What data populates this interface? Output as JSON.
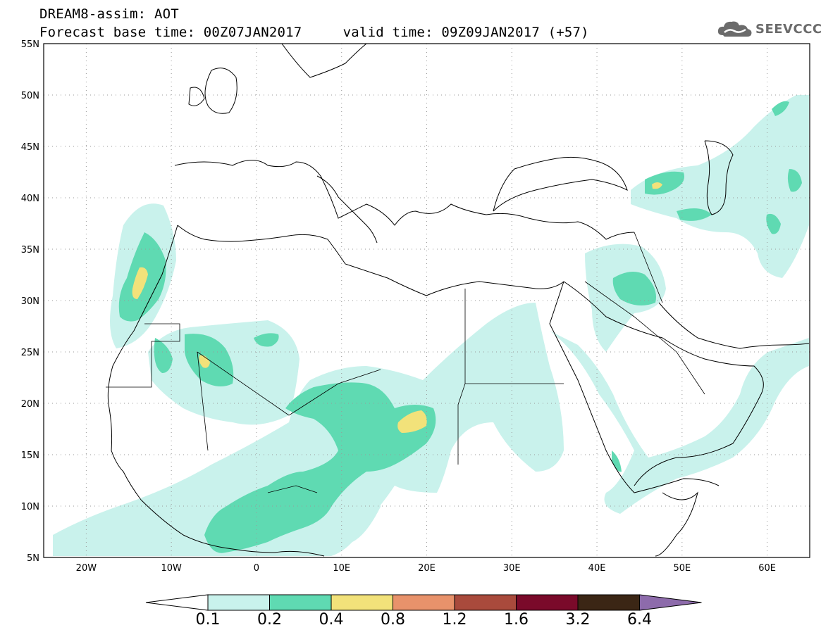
{
  "header": {
    "title": "DREAM8-assim: AOT",
    "base_time_label": "Forecast base time: 00Z07JAN2017",
    "valid_time_label": "valid time: 09Z09JAN2017 (+57)"
  },
  "logo": {
    "text": "SEEVCCC",
    "icon": "cloud-icon"
  },
  "map": {
    "lon_range": [
      -25,
      65
    ],
    "lat_range": [
      5,
      55
    ],
    "lat_ticks": [
      "5N",
      "10N",
      "15N",
      "20N",
      "25N",
      "30N",
      "35N",
      "40N",
      "45N",
      "50N",
      "55N"
    ],
    "lon_ticks": [
      "20W",
      "10W",
      "0",
      "10E",
      "20E",
      "30E",
      "40E",
      "50E",
      "60E"
    ],
    "grid": "dotted"
  },
  "colorbar": {
    "labels": [
      "0.1",
      "0.2",
      "0.4",
      "0.8",
      "1.2",
      "1.6",
      "3.2",
      "6.4"
    ],
    "colors": [
      "#ffffff",
      "#c9f2ec",
      "#5fdab2",
      "#f2e27a",
      "#e8926b",
      "#a94a3c",
      "#7a0a2a",
      "#3b2615",
      "#8d6bab"
    ]
  }
}
